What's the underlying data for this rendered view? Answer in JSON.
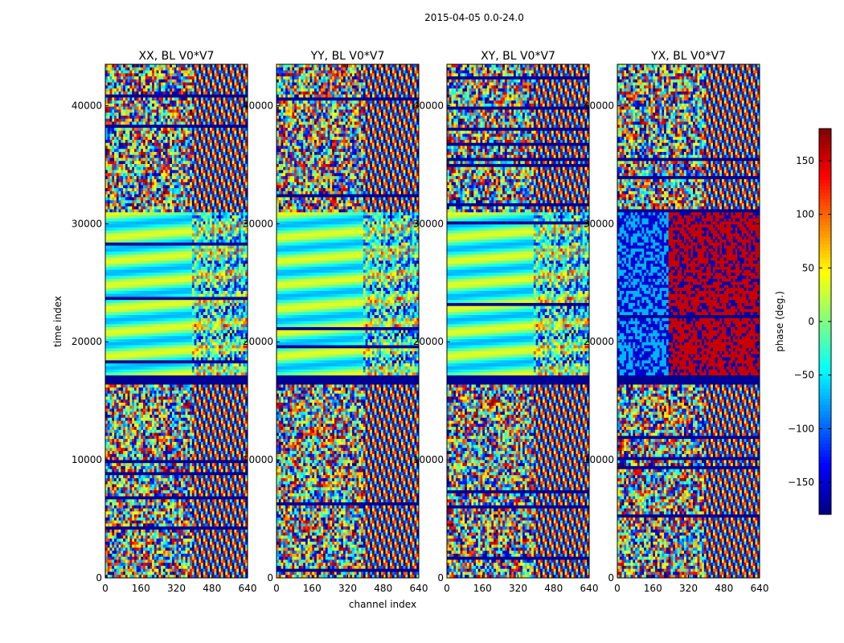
{
  "chart_data": {
    "type": "heatmap",
    "suptitle": "2015-04-05 0.0-24.0",
    "xlabel": "channel index",
    "ylabel": "time index",
    "xlim": [
      0,
      640
    ],
    "ylim": [
      0,
      43500
    ],
    "xticks": [
      0,
      160,
      320,
      480,
      640
    ],
    "xtick_labels": [
      "0",
      "160",
      "320",
      "480",
      "640"
    ],
    "yticks": [
      0,
      10000,
      20000,
      30000,
      40000
    ],
    "ytick_labels": [
      "0",
      "10000",
      "20000",
      "30000",
      "40000"
    ],
    "colormap": "jet",
    "panels": [
      {
        "title": "XX, BL V0*V7",
        "ytick_labels": [
          "0",
          "10000",
          "20000",
          "30000",
          "40000"
        ]
      },
      {
        "title": "YY, BL V0*V7",
        "ytick_labels": [
          "0",
          "10000",
          "20000",
          "30000",
          "40000"
        ]
      },
      {
        "title": "XY, BL V0*V7",
        "ytick_labels": [
          "0",
          "10000",
          "20000",
          "30000",
          "40000"
        ]
      },
      {
        "title": "YX, BL V0*V7",
        "ytick_labels": [
          "0",
          "10000",
          "20000",
          "30000",
          "40000"
        ]
      }
    ],
    "colorbar": {
      "label": "phase (deg.)",
      "range": [
        -180,
        180
      ],
      "ticks": [
        -150,
        -100,
        -50,
        0,
        50,
        100,
        150
      ],
      "tick_labels": [
        "−150",
        "−100",
        "−50",
        "0",
        "50",
        "100",
        "150"
      ]
    }
  }
}
